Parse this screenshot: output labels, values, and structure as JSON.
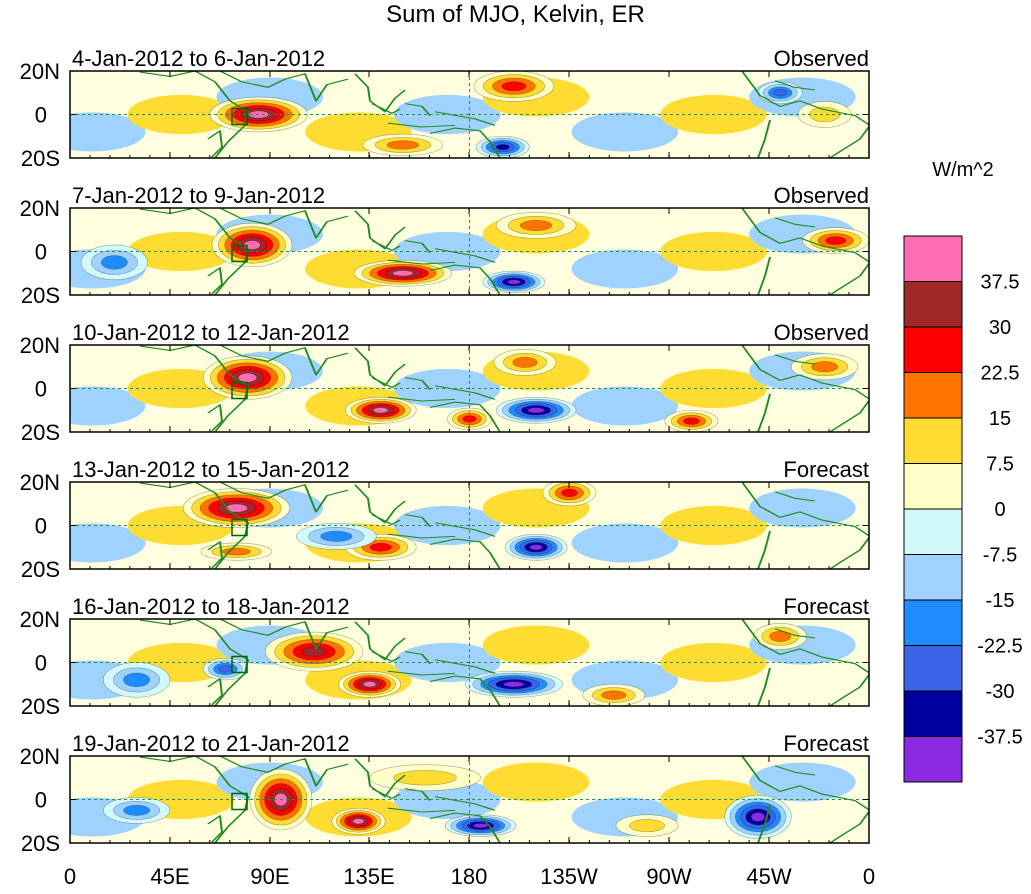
{
  "chart_data": {
    "type": "heatmap",
    "title": "Sum of MJO, Kelvin, ER",
    "units": "W/m^2",
    "x_ticks": [
      "0",
      "45E",
      "90E",
      "135E",
      "180",
      "135W",
      "90W",
      "45W",
      "0"
    ],
    "y_ticks": [
      "20N",
      "0",
      "20S"
    ],
    "xlim": [
      0,
      360
    ],
    "ylim": [
      -20,
      20
    ],
    "levels": [
      "37.5",
      "30",
      "22.5",
      "15",
      "7.5",
      "0",
      "-7.5",
      "-15",
      "-22.5",
      "-30",
      "-37.5"
    ],
    "color_scale": [
      "#ff6eb4",
      "#a02828",
      "#ff0000",
      "#ff7300",
      "#ffdc32",
      "#ffffc8",
      "#d2fafa",
      "#a0d2ff",
      "#1e8cff",
      "#3c64e6",
      "#0000a0",
      "#8a2be2"
    ],
    "panels": [
      {
        "date": "4-Jan-2012 to 6-Jan-2012",
        "status": "Observed",
        "anomalies": [
          {
            "lon": 85,
            "lat": 0,
            "rx": 22,
            "ry": 8,
            "peak": 38
          },
          {
            "lon": 200,
            "lat": 13,
            "rx": 18,
            "ry": 7,
            "peak": 30
          },
          {
            "lon": 150,
            "lat": -14,
            "rx": 18,
            "ry": 5,
            "peak": 22
          },
          {
            "lon": 195,
            "lat": -15,
            "rx": 12,
            "ry": 5,
            "peak": -34
          },
          {
            "lon": 320,
            "lat": 10,
            "rx": 10,
            "ry": 5,
            "peak": -30
          },
          {
            "lon": 340,
            "lat": 0,
            "rx": 12,
            "ry": 6,
            "peak": 15
          }
        ]
      },
      {
        "date": "7-Jan-2012 to 9-Jan-2012",
        "status": "Observed",
        "anomalies": [
          {
            "lon": 82,
            "lat": 3,
            "rx": 18,
            "ry": 10,
            "peak": 42
          },
          {
            "lon": 150,
            "lat": -10,
            "rx": 22,
            "ry": 6,
            "peak": 40
          },
          {
            "lon": 200,
            "lat": -14,
            "rx": 14,
            "ry": 5,
            "peak": -40
          },
          {
            "lon": 210,
            "lat": 12,
            "rx": 18,
            "ry": 6,
            "peak": 18
          },
          {
            "lon": 345,
            "lat": 5,
            "rx": 15,
            "ry": 6,
            "peak": 25
          },
          {
            "lon": 20,
            "lat": -5,
            "rx": 15,
            "ry": 8,
            "peak": -18
          }
        ]
      },
      {
        "date": "10-Jan-2012 to 12-Jan-2012",
        "status": "Observed",
        "anomalies": [
          {
            "lon": 80,
            "lat": 5,
            "rx": 20,
            "ry": 10,
            "peak": 40
          },
          {
            "lon": 140,
            "lat": -10,
            "rx": 16,
            "ry": 6,
            "peak": 38
          },
          {
            "lon": 210,
            "lat": -10,
            "rx": 18,
            "ry": 6,
            "peak": -42
          },
          {
            "lon": 205,
            "lat": 12,
            "rx": 14,
            "ry": 6,
            "peak": 22
          },
          {
            "lon": 180,
            "lat": -14,
            "rx": 10,
            "ry": 5,
            "peak": 25
          },
          {
            "lon": 280,
            "lat": -15,
            "rx": 12,
            "ry": 5,
            "peak": 25
          },
          {
            "lon": 340,
            "lat": 10,
            "rx": 15,
            "ry": 6,
            "peak": 18
          }
        ]
      },
      {
        "date": "13-Jan-2012 to 15-Jan-2012",
        "status": "Forecast",
        "anomalies": [
          {
            "lon": 75,
            "lat": 8,
            "rx": 24,
            "ry": 9,
            "peak": 38
          },
          {
            "lon": 140,
            "lat": -10,
            "rx": 16,
            "ry": 6,
            "peak": 30
          },
          {
            "lon": 210,
            "lat": -10,
            "rx": 14,
            "ry": 6,
            "peak": -42
          },
          {
            "lon": 225,
            "lat": 15,
            "rx": 12,
            "ry": 6,
            "peak": 30
          },
          {
            "lon": 75,
            "lat": -12,
            "rx": 16,
            "ry": 4,
            "peak": 22
          },
          {
            "lon": 120,
            "lat": -5,
            "rx": 18,
            "ry": 6,
            "peak": -18
          }
        ]
      },
      {
        "date": "16-Jan-2012 to 18-Jan-2012",
        "status": "Forecast",
        "anomalies": [
          {
            "lon": 110,
            "lat": 5,
            "rx": 22,
            "ry": 9,
            "peak": 35
          },
          {
            "lon": 135,
            "lat": -10,
            "rx": 14,
            "ry": 6,
            "peak": 38
          },
          {
            "lon": 200,
            "lat": -10,
            "rx": 22,
            "ry": 6,
            "peak": -42
          },
          {
            "lon": 70,
            "lat": -3,
            "rx": 10,
            "ry": 5,
            "peak": -30
          },
          {
            "lon": 245,
            "lat": -15,
            "rx": 14,
            "ry": 5,
            "peak": 20
          },
          {
            "lon": 320,
            "lat": 12,
            "rx": 12,
            "ry": 6,
            "peak": 20
          },
          {
            "lon": 30,
            "lat": -8,
            "rx": 15,
            "ry": 8,
            "peak": -20
          }
        ]
      },
      {
        "date": "19-Jan-2012 to 21-Jan-2012",
        "status": "Forecast",
        "anomalies": [
          {
            "lon": 95,
            "lat": 0,
            "rx": 14,
            "ry": 14,
            "peak": 38
          },
          {
            "lon": 130,
            "lat": -10,
            "rx": 12,
            "ry": 6,
            "peak": 38
          },
          {
            "lon": 185,
            "lat": -12,
            "rx": 16,
            "ry": 5,
            "peak": -38
          },
          {
            "lon": 310,
            "lat": -8,
            "rx": 15,
            "ry": 10,
            "peak": -40
          },
          {
            "lon": 160,
            "lat": 10,
            "rx": 25,
            "ry": 6,
            "peak": 15
          },
          {
            "lon": 260,
            "lat": -12,
            "rx": 14,
            "ry": 5,
            "peak": 15
          },
          {
            "lon": 30,
            "lat": -5,
            "rx": 15,
            "ry": 6,
            "peak": -20
          }
        ]
      }
    ]
  }
}
